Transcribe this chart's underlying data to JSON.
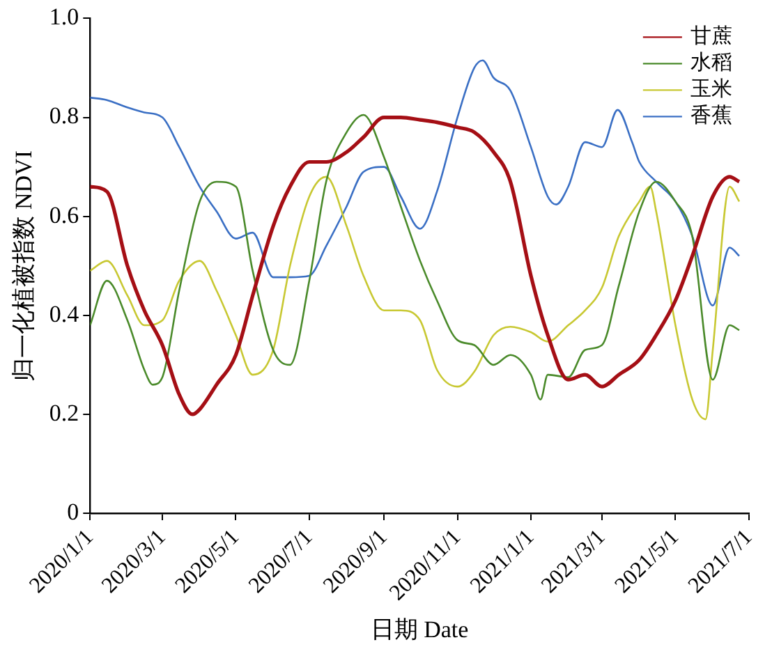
{
  "chart_data": {
    "type": "line",
    "xlabel": "日期 Date",
    "ylabel": "归一化植被指数 NDVI",
    "xlim": [
      "2020-01-01",
      "2021-07-01"
    ],
    "xticks": [
      {
        "value": "2020-01-01",
        "label": "2020/1/1"
      },
      {
        "value": "2020-03-01",
        "label": "2020/3/1"
      },
      {
        "value": "2020-05-01",
        "label": "2020/5/1"
      },
      {
        "value": "2020-07-01",
        "label": "2020/7/1"
      },
      {
        "value": "2020-09-01",
        "label": "2020/9/1"
      },
      {
        "value": "2020-11-01",
        "label": "2020/11/1"
      },
      {
        "value": "2021-01-01",
        "label": "2021/1/1"
      },
      {
        "value": "2021-03-01",
        "label": "2021/3/1"
      },
      {
        "value": "2021-05-01",
        "label": "2021/5/1"
      },
      {
        "value": "2021-07-01",
        "label": "2021/7/1"
      }
    ],
    "ylim": [
      0,
      1
    ],
    "yticks": [
      0,
      0.2,
      0.4,
      0.6,
      0.8,
      {
        "value": 1,
        "label": "1.0"
      }
    ],
    "grid": false,
    "legend": "top right",
    "marker": "none",
    "line_style": "solid",
    "series": [
      {
        "name": "甘蔗",
        "color": "#a50f15",
        "x": [
          "2020-01-01",
          "2020-01-15",
          "2020-02-01",
          "2020-02-15",
          "2020-03-01",
          "2020-03-15",
          "2020-03-26",
          "2020-04-01",
          "2020-04-15",
          "2020-05-01",
          "2020-05-15",
          "2020-06-01",
          "2020-06-15",
          "2020-07-01",
          "2020-07-15",
          "2020-08-01",
          "2020-08-15",
          "2020-09-01",
          "2020-09-15",
          "2020-10-01",
          "2020-10-15",
          "2020-11-01",
          "2020-11-15",
          "2020-12-01",
          "2020-12-15",
          "2021-01-01",
          "2021-01-15",
          "2021-02-01",
          "2021-02-15",
          "2021-03-01",
          "2021-03-15",
          "2021-04-01",
          "2021-04-15",
          "2021-05-01",
          "2021-05-15",
          "2021-06-01",
          "2021-06-15",
          "2021-06-23"
        ],
        "values": [
          0.66,
          0.65,
          0.5,
          0.41,
          0.34,
          0.24,
          0.2,
          0.21,
          0.26,
          0.32,
          0.44,
          0.58,
          0.66,
          0.71,
          0.71,
          0.73,
          0.76,
          0.8,
          0.8,
          0.795,
          0.79,
          0.78,
          0.77,
          0.73,
          0.67,
          0.48,
          0.36,
          0.27,
          0.28,
          0.256,
          0.28,
          0.31,
          0.36,
          0.43,
          0.52,
          0.64,
          0.68,
          0.67
        ]
      },
      {
        "name": "水稻",
        "color": "#4a8a2a",
        "x": [
          "2020-01-01",
          "2020-01-15",
          "2020-02-01",
          "2020-02-15",
          "2020-02-22",
          "2020-03-01",
          "2020-03-15",
          "2020-04-01",
          "2020-04-15",
          "2020-05-01",
          "2020-05-15",
          "2020-06-01",
          "2020-06-15",
          "2020-07-01",
          "2020-07-15",
          "2020-08-01",
          "2020-08-15",
          "2020-09-01",
          "2020-09-15",
          "2020-10-01",
          "2020-10-15",
          "2020-11-01",
          "2020-11-15",
          "2020-12-01",
          "2020-12-15",
          "2021-01-01",
          "2021-01-09",
          "2021-01-15",
          "2021-02-01",
          "2021-02-15",
          "2021-03-01",
          "2021-03-15",
          "2021-04-01",
          "2021-04-15",
          "2021-05-01",
          "2021-05-15",
          "2021-06-01",
          "2021-06-15",
          "2021-06-23"
        ],
        "values": [
          0.38,
          0.47,
          0.39,
          0.29,
          0.26,
          0.275,
          0.45,
          0.63,
          0.67,
          0.66,
          0.49,
          0.33,
          0.3,
          0.47,
          0.67,
          0.77,
          0.805,
          0.72,
          0.62,
          0.51,
          0.43,
          0.35,
          0.34,
          0.3,
          0.32,
          0.28,
          0.23,
          0.28,
          0.275,
          0.33,
          0.34,
          0.46,
          0.61,
          0.67,
          0.63,
          0.56,
          0.27,
          0.38,
          0.37
        ]
      },
      {
        "name": "玉米",
        "color": "#c8c832",
        "x": [
          "2020-01-01",
          "2020-01-15",
          "2020-02-01",
          "2020-02-15",
          "2020-03-01",
          "2020-03-15",
          "2020-04-01",
          "2020-04-15",
          "2020-05-01",
          "2020-05-15",
          "2020-06-01",
          "2020-06-15",
          "2020-07-01",
          "2020-07-15",
          "2020-08-01",
          "2020-08-15",
          "2020-09-01",
          "2020-09-15",
          "2020-10-01",
          "2020-10-15",
          "2020-11-01",
          "2020-11-15",
          "2020-12-01",
          "2020-12-15",
          "2021-01-01",
          "2021-01-15",
          "2021-02-01",
          "2021-02-15",
          "2021-03-01",
          "2021-03-15",
          "2021-04-01",
          "2021-04-10",
          "2021-04-15",
          "2021-05-01",
          "2021-05-15",
          "2021-05-26",
          "2021-06-01",
          "2021-06-15",
          "2021-06-23"
        ],
        "values": [
          0.49,
          0.51,
          0.44,
          0.38,
          0.39,
          0.47,
          0.51,
          0.45,
          0.36,
          0.28,
          0.33,
          0.5,
          0.64,
          0.68,
          0.58,
          0.48,
          0.41,
          0.41,
          0.39,
          0.29,
          0.256,
          0.286,
          0.36,
          0.377,
          0.366,
          0.347,
          0.38,
          0.41,
          0.456,
          0.56,
          0.63,
          0.66,
          0.61,
          0.38,
          0.23,
          0.19,
          0.33,
          0.66,
          0.63
        ]
      },
      {
        "name": "香蕉",
        "color": "#3a6fc4",
        "x": [
          "2020-01-01",
          "2020-01-15",
          "2020-02-01",
          "2020-02-15",
          "2020-03-01",
          "2020-03-15",
          "2020-04-01",
          "2020-04-15",
          "2020-05-01",
          "2020-05-15",
          "2020-06-01",
          "2020-06-15",
          "2020-07-01",
          "2020-07-15",
          "2020-08-01",
          "2020-08-15",
          "2020-09-01",
          "2020-09-15",
          "2020-10-01",
          "2020-10-15",
          "2020-11-01",
          "2020-11-15",
          "2020-11-22",
          "2020-12-01",
          "2020-12-15",
          "2021-01-01",
          "2021-01-15",
          "2021-01-22",
          "2021-02-01",
          "2021-02-15",
          "2021-03-01",
          "2021-03-14",
          "2021-03-26",
          "2021-04-01",
          "2021-04-15",
          "2021-05-01",
          "2021-05-15",
          "2021-06-01",
          "2021-06-15",
          "2021-06-23"
        ],
        "values": [
          0.84,
          0.835,
          0.82,
          0.81,
          0.8,
          0.74,
          0.66,
          0.61,
          0.555,
          0.567,
          0.477,
          0.477,
          0.48,
          0.54,
          0.62,
          0.69,
          0.7,
          0.64,
          0.575,
          0.65,
          0.8,
          0.9,
          0.915,
          0.88,
          0.854,
          0.74,
          0.64,
          0.624,
          0.66,
          0.75,
          0.74,
          0.815,
          0.75,
          0.71,
          0.67,
          0.63,
          0.56,
          0.42,
          0.537,
          0.52
        ]
      }
    ]
  }
}
